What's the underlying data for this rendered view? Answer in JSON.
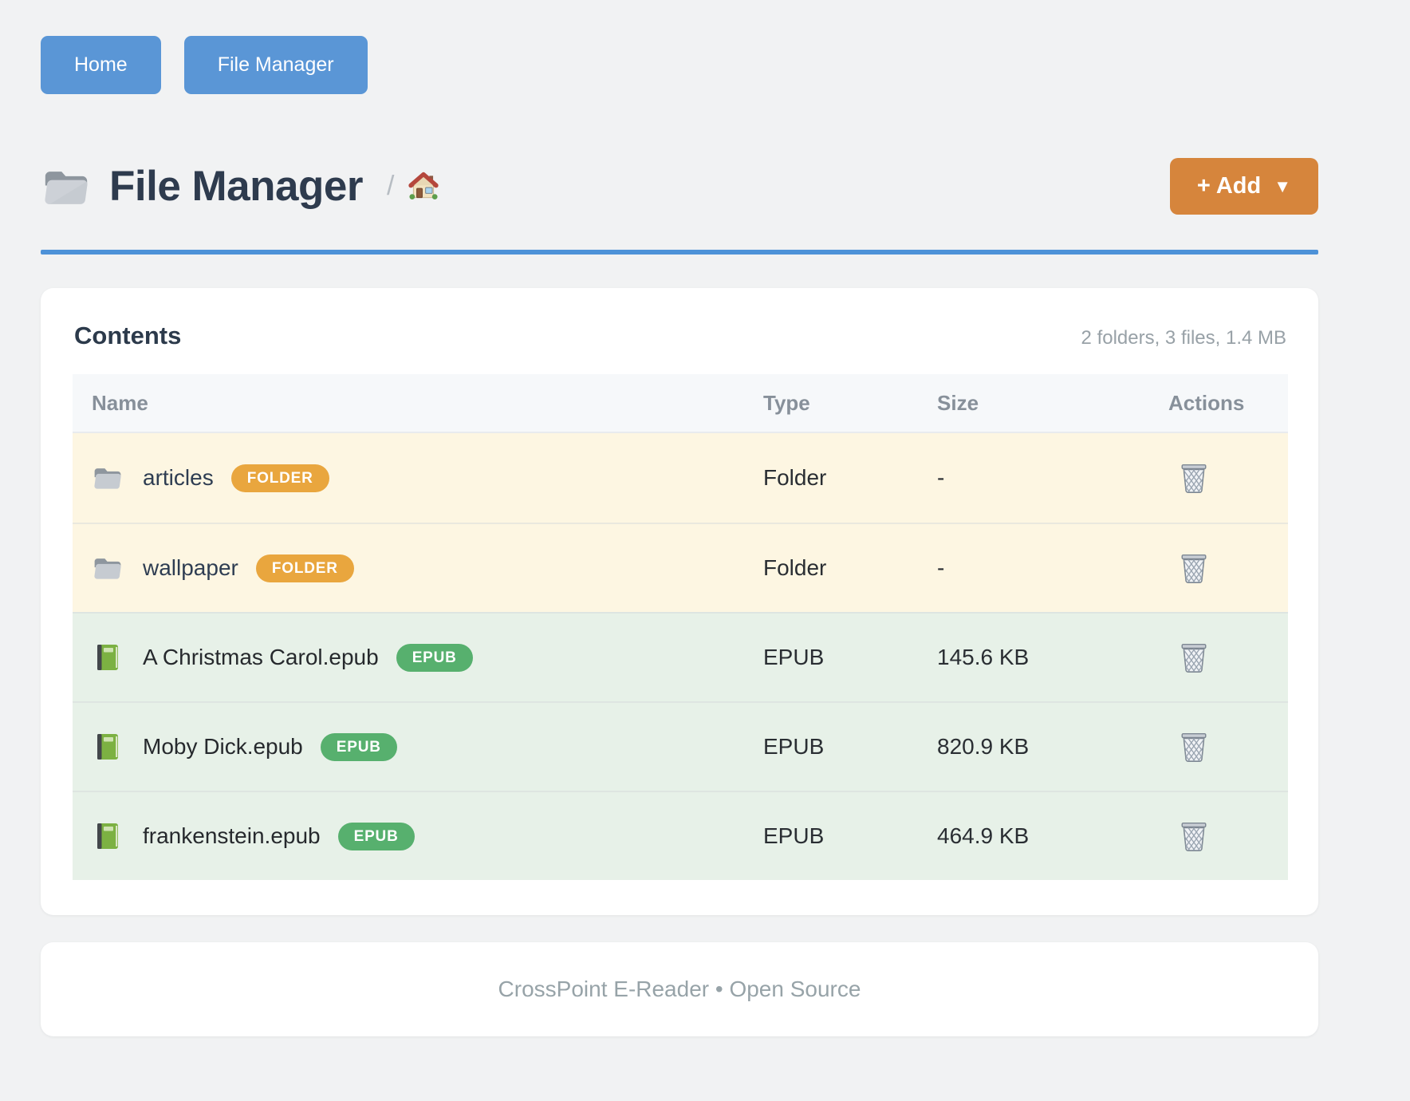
{
  "nav": {
    "home_label": "Home",
    "file_manager_label": "File Manager"
  },
  "header": {
    "title": "File Manager",
    "breadcrumb_separator": "/",
    "add_button_label": "+ Add",
    "add_button_caret": "▼",
    "accent_blue": "#5a96d6",
    "accent_orange": "#d6853c",
    "rule_color": "#4d92d8"
  },
  "icons": {
    "title": "folder-icon",
    "breadcrumb": "house-icon",
    "folder_row": "folder-icon",
    "epub_row": "book-icon",
    "row_action": "trash-icon",
    "add_caret": "caret-down-icon"
  },
  "contents": {
    "heading": "Contents",
    "summary": "2 folders, 3 files, 1.4 MB"
  },
  "table": {
    "columns": [
      "Name",
      "Type",
      "Size",
      "Actions"
    ],
    "badge_colors": {
      "folder": "#e9a63e",
      "epub": "#57b06e"
    },
    "row_colors": {
      "folder": "#fdf6e2",
      "epub": "#e7f1e8"
    },
    "rows": [
      {
        "name": "articles",
        "kind": "folder",
        "badge": "FOLDER",
        "type": "Folder",
        "size": "-"
      },
      {
        "name": "wallpaper",
        "kind": "folder",
        "badge": "FOLDER",
        "type": "Folder",
        "size": "-"
      },
      {
        "name": "A Christmas Carol.epub",
        "kind": "epub",
        "badge": "EPUB",
        "type": "EPUB",
        "size": "145.6 KB"
      },
      {
        "name": "Moby Dick.epub",
        "kind": "epub",
        "badge": "EPUB",
        "type": "EPUB",
        "size": "820.9 KB"
      },
      {
        "name": "frankenstein.epub",
        "kind": "epub",
        "badge": "EPUB",
        "type": "EPUB",
        "size": "464.9 KB"
      }
    ]
  },
  "footer": {
    "text": "CrossPoint E-Reader • Open Source"
  }
}
